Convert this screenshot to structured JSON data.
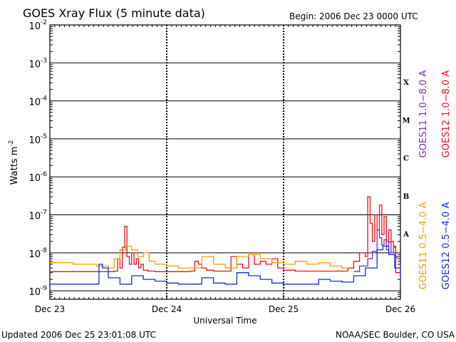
{
  "chart_data": {
    "type": "line",
    "title": "GOES Xray Flux (5 minute data)",
    "begin_label": "Begin:  2006 Dec 23 0000 UTC",
    "xlabel": "Universal Time",
    "ylabel": "Watts m",
    "ylabel_sup": "-2",
    "x_ticks": [
      "Dec 23",
      "Dec 24",
      "Dec 25",
      "Dec 26"
    ],
    "xlim_days": [
      0,
      3
    ],
    "y_scale": "log",
    "ylim": [
      6e-10,
      0.01
    ],
    "y_tick_base": "10",
    "y_tick_exponents": [
      "-2",
      "-3",
      "-4",
      "-5",
      "-6",
      "-7",
      "-8",
      "-9"
    ],
    "flare_classes": [
      "X",
      "M",
      "C",
      "B",
      "A"
    ],
    "grid": true,
    "legend": [
      {
        "label": "GOES11 1.0−8.0 A",
        "color": "#7a2bbf"
      },
      {
        "label": "GOES12 1.0−8.0 A",
        "color": "#e8101c"
      },
      {
        "label": "GOES11 0.5−4.0 A",
        "color": "#f0a000"
      },
      {
        "label": "GOES12 0.5−4.0 A",
        "color": "#1030e0"
      }
    ],
    "series": [
      {
        "name": "GOES11 1.0−8.0 A",
        "color": "#7a2bbf",
        "x": [
          2.6,
          2.65,
          2.72,
          2.76,
          2.8,
          2.82,
          2.84,
          2.86,
          2.88,
          2.9,
          2.92,
          2.94,
          2.96,
          2.97
        ],
        "y": [
          3.2e-09,
          4.5e-09,
          7e-09,
          1.1e-08,
          4e-08,
          2.5e-08,
          1.6e-08,
          2.2e-08,
          1.2e-08,
          1.9e-08,
          1e-08,
          1.4e-08,
          8e-09,
          7e-09
        ]
      },
      {
        "name": "GOES12 1.0−8.0 A",
        "color": "#e8101c",
        "x": [
          0.0,
          0.2,
          0.4,
          0.55,
          0.58,
          0.6,
          0.62,
          0.64,
          0.66,
          0.68,
          0.7,
          0.72,
          0.74,
          0.76,
          0.78,
          0.8,
          0.84,
          0.9,
          1.0,
          1.1,
          1.2,
          1.24,
          1.27,
          1.3,
          1.34,
          1.4,
          1.5,
          1.55,
          1.6,
          1.65,
          1.7,
          1.75,
          1.8,
          1.85,
          1.9,
          1.95,
          2.0,
          2.1,
          2.2,
          2.3,
          2.4,
          2.5,
          2.55,
          2.6,
          2.65,
          2.7,
          2.72,
          2.74,
          2.76,
          2.78,
          2.8,
          2.82,
          2.84,
          2.86,
          2.88,
          2.9,
          2.92,
          2.94,
          2.96,
          3.0
        ],
        "y": [
          3.2e-09,
          3.2e-09,
          3.2e-09,
          3.3e-09,
          7e-09,
          4e-09,
          1.4e-08,
          5e-08,
          8e-09,
          5e-09,
          1e-08,
          5e-09,
          7e-09,
          4e-09,
          5e-09,
          3.5e-09,
          3.3e-09,
          3.2e-09,
          3.2e-09,
          3.2e-09,
          3.3e-09,
          6e-09,
          5e-09,
          4e-09,
          3.5e-09,
          3.3e-09,
          3.3e-09,
          8e-09,
          5e-09,
          4e-09,
          9e-09,
          5e-09,
          6e-09,
          5e-09,
          7e-09,
          4e-09,
          3.5e-09,
          3.3e-09,
          3.3e-09,
          3.3e-09,
          3.3e-09,
          3.3e-09,
          4e-09,
          6e-09,
          1e-08,
          8e-09,
          3e-07,
          6e-08,
          2e-08,
          1e-07,
          4e-08,
          1.8e-07,
          3e-08,
          9e-08,
          2e-08,
          4e-08,
          2e-08,
          1.5e-08,
          3e-09,
          3e-09
        ]
      },
      {
        "name": "GOES11 0.5−4.0 A",
        "color": "#f0a000",
        "x": [
          0.0,
          0.2,
          0.4,
          0.5,
          0.55,
          0.6,
          0.65,
          0.7,
          0.75,
          0.8,
          0.85,
          0.9,
          1.0,
          1.1,
          1.2,
          1.3,
          1.4,
          1.5,
          1.6,
          1.7,
          1.8,
          1.9,
          2.0,
          2.1,
          2.2,
          2.3,
          2.4,
          2.5,
          2.55
        ],
        "y": [
          5.5e-09,
          5e-09,
          4.5e-09,
          4e-09,
          7e-09,
          1.2e-08,
          1.5e-08,
          1.2e-08,
          8e-09,
          1e-08,
          6e-09,
          5e-09,
          4.5e-09,
          4e-09,
          4e-09,
          8e-09,
          5e-09,
          4e-09,
          8e-09,
          9e-09,
          7e-09,
          5.5e-09,
          5e-09,
          6e-09,
          5e-09,
          5.5e-09,
          4.5e-09,
          4e-09,
          4e-09
        ]
      },
      {
        "name": "GOES12 0.5−4.0 A",
        "color": "#1030e0",
        "x": [
          0.0,
          0.2,
          0.4,
          0.42,
          0.45,
          0.5,
          0.6,
          0.7,
          0.8,
          0.9,
          1.0,
          1.1,
          1.2,
          1.3,
          1.4,
          1.5,
          1.6,
          1.7,
          1.8,
          1.9,
          2.0,
          2.1,
          2.2,
          2.3,
          2.4,
          2.5,
          2.6,
          2.7,
          2.8,
          2.85,
          2.9,
          2.95,
          3.0
        ],
        "y": [
          1.5e-09,
          1.5e-09,
          1.5e-09,
          5e-09,
          4e-09,
          2.2e-09,
          1.5e-09,
          2.5e-09,
          2e-09,
          1.8e-09,
          1.6e-09,
          1.5e-09,
          1.5e-09,
          2.2e-09,
          1.6e-09,
          1.5e-09,
          3e-09,
          2.5e-09,
          2e-09,
          1.6e-09,
          1.5e-09,
          1.5e-09,
          1.5e-09,
          2e-09,
          1.8e-09,
          1.7e-09,
          2.5e-09,
          4e-09,
          1.2e-08,
          1.5e-08,
          9e-09,
          4e-09,
          2e-09
        ]
      }
    ]
  },
  "footer": {
    "updated": "Updated 2006 Dec 25 23:01:08 UTC",
    "source": "NOAA/SEC Boulder, CO USA"
  }
}
